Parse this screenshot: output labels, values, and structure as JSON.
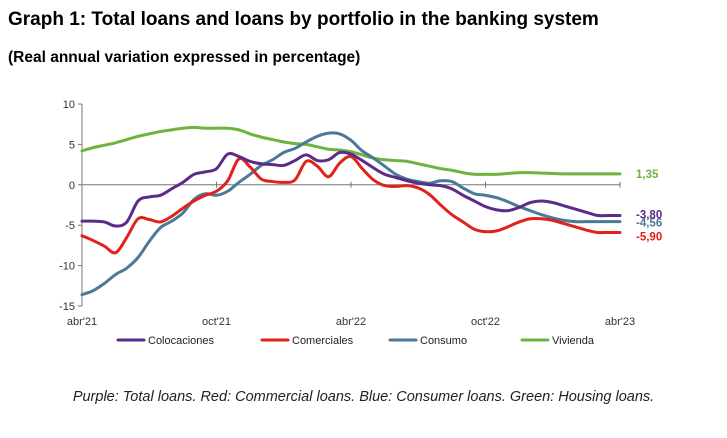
{
  "title": "Graph 1: Total loans and loans by portfolio in the banking system",
  "subtitle": "(Real annual variation expressed in percentage)",
  "footnote": "Purple: Total loans. Red: Commercial loans. Blue: Consumer loans. Green: Housing loans.",
  "chart_data": {
    "type": "line",
    "title": "Graph 1: Total loans and loans by portfolio in the banking system",
    "subtitle": "(Real annual variation expressed in percentage)",
    "xlabel": "",
    "ylabel": "",
    "x_tick_labels": [
      "abr'21",
      "oct'21",
      "abr'22",
      "oct'22",
      "abr'23"
    ],
    "y_ticks": [
      10,
      5,
      0,
      -5,
      -10,
      -15
    ],
    "ylim": [
      -15,
      10
    ],
    "xlim": [
      0,
      24
    ],
    "grid": false,
    "legend_position": "bottom",
    "series": [
      {
        "name": "Colocaciones",
        "color": "#5b2a8a",
        "end_label": "-3,80",
        "x": [
          0,
          0.5,
          1,
          1.5,
          2,
          2.5,
          3,
          3.5,
          4,
          4.5,
          5,
          5.5,
          6,
          6.5,
          7,
          7.5,
          8,
          8.5,
          9,
          9.5,
          10,
          10.5,
          11,
          11.5,
          12,
          12.5,
          13,
          13.5,
          14,
          14.5,
          15,
          15.5,
          16,
          16.5,
          17,
          17.5,
          18,
          18.5,
          19,
          19.5,
          20,
          20.5,
          21,
          21.5,
          22,
          22.5,
          23,
          23.5,
          24
        ],
        "values": [
          -4.5,
          -4.5,
          -4.6,
          -5.1,
          -4.6,
          -2.0,
          -1.5,
          -1.3,
          -0.5,
          0.3,
          1.3,
          1.6,
          2.0,
          3.8,
          3.5,
          2.9,
          2.6,
          2.5,
          2.4,
          3.0,
          3.7,
          3.0,
          3.1,
          4.0,
          3.8,
          3.0,
          2.1,
          1.3,
          0.9,
          0.5,
          0.2,
          0.0,
          -0.1,
          -0.5,
          -1.3,
          -2.0,
          -2.7,
          -3.1,
          -3.2,
          -2.8,
          -2.2,
          -2.0,
          -2.2,
          -2.6,
          -3.0,
          -3.4,
          -3.8,
          -3.8,
          -3.8
        ]
      },
      {
        "name": "Comerciales",
        "color": "#e0221a",
        "end_label": "-5,90",
        "x": [
          0,
          0.5,
          1,
          1.5,
          2,
          2.5,
          3,
          3.5,
          4,
          4.5,
          5,
          5.5,
          6,
          6.5,
          7,
          7.5,
          8,
          8.5,
          9,
          9.5,
          10,
          10.5,
          11,
          11.5,
          12,
          12.5,
          13,
          13.5,
          14,
          14.5,
          15,
          15.5,
          16,
          16.5,
          17,
          17.5,
          18,
          18.5,
          19,
          19.5,
          20,
          20.5,
          21,
          21.5,
          22,
          22.5,
          23,
          23.5,
          24
        ],
        "values": [
          -6.3,
          -6.9,
          -7.6,
          -8.4,
          -6.5,
          -4.2,
          -4.3,
          -4.6,
          -3.9,
          -2.9,
          -2.0,
          -1.3,
          -0.8,
          0.5,
          3.2,
          2.2,
          0.7,
          0.4,
          0.3,
          0.6,
          2.9,
          2.3,
          1.0,
          2.7,
          3.5,
          2.0,
          0.6,
          -0.1,
          -0.2,
          -0.1,
          -0.4,
          -1.2,
          -2.5,
          -3.7,
          -4.6,
          -5.5,
          -5.8,
          -5.7,
          -5.2,
          -4.6,
          -4.2,
          -4.2,
          -4.4,
          -4.8,
          -5.2,
          -5.6,
          -5.9,
          -5.9,
          -5.9
        ]
      },
      {
        "name": "Consumo",
        "color": "#4a7a96",
        "end_label": "-4,56",
        "x": [
          0,
          0.5,
          1,
          1.5,
          2,
          2.5,
          3,
          3.5,
          4,
          4.5,
          5,
          5.5,
          6,
          6.5,
          7,
          7.5,
          8,
          8.5,
          9,
          9.5,
          10,
          10.5,
          11,
          11.5,
          12,
          12.5,
          13,
          13.5,
          14,
          14.5,
          15,
          15.5,
          16,
          16.5,
          17,
          17.5,
          18,
          18.5,
          19,
          19.5,
          20,
          20.5,
          21,
          21.5,
          22,
          22.5,
          23,
          23.5,
          24
        ],
        "values": [
          -13.6,
          -13.1,
          -12.2,
          -11.1,
          -10.3,
          -9.0,
          -7.0,
          -5.3,
          -4.5,
          -3.5,
          -1.8,
          -1.1,
          -1.3,
          -0.8,
          0.3,
          1.3,
          2.4,
          3.1,
          4.0,
          4.5,
          5.3,
          6.0,
          6.4,
          6.3,
          5.5,
          4.2,
          3.3,
          2.3,
          1.3,
          0.7,
          0.4,
          0.2,
          0.5,
          0.4,
          -0.4,
          -1.1,
          -1.3,
          -1.6,
          -2.1,
          -2.7,
          -3.2,
          -3.7,
          -4.1,
          -4.4,
          -4.56,
          -4.56,
          -4.56,
          -4.56,
          -4.56
        ]
      },
      {
        "name": "Vivienda",
        "color": "#6db33f",
        "end_label": "1,35",
        "x": [
          0,
          0.5,
          1,
          1.5,
          2,
          2.5,
          3,
          3.5,
          4,
          4.5,
          5,
          5.5,
          6,
          6.5,
          7,
          7.5,
          8,
          8.5,
          9,
          9.5,
          10,
          10.5,
          11,
          11.5,
          12,
          12.5,
          13,
          13.5,
          14,
          14.5,
          15,
          15.5,
          16,
          16.5,
          17,
          17.5,
          18,
          18.5,
          19,
          19.5,
          20,
          20.5,
          21,
          21.5,
          22,
          22.5,
          23,
          23.5,
          24
        ],
        "values": [
          4.2,
          4.6,
          4.9,
          5.2,
          5.6,
          6.0,
          6.3,
          6.6,
          6.8,
          7.0,
          7.1,
          7.0,
          7.0,
          7.0,
          6.8,
          6.3,
          5.9,
          5.6,
          5.3,
          5.1,
          5.0,
          4.7,
          4.4,
          4.3,
          4.1,
          3.7,
          3.3,
          3.1,
          3.0,
          2.9,
          2.6,
          2.3,
          2.0,
          1.8,
          1.5,
          1.3,
          1.3,
          1.3,
          1.4,
          1.5,
          1.5,
          1.45,
          1.4,
          1.35,
          1.35,
          1.35,
          1.35,
          1.35,
          1.35
        ]
      }
    ]
  }
}
